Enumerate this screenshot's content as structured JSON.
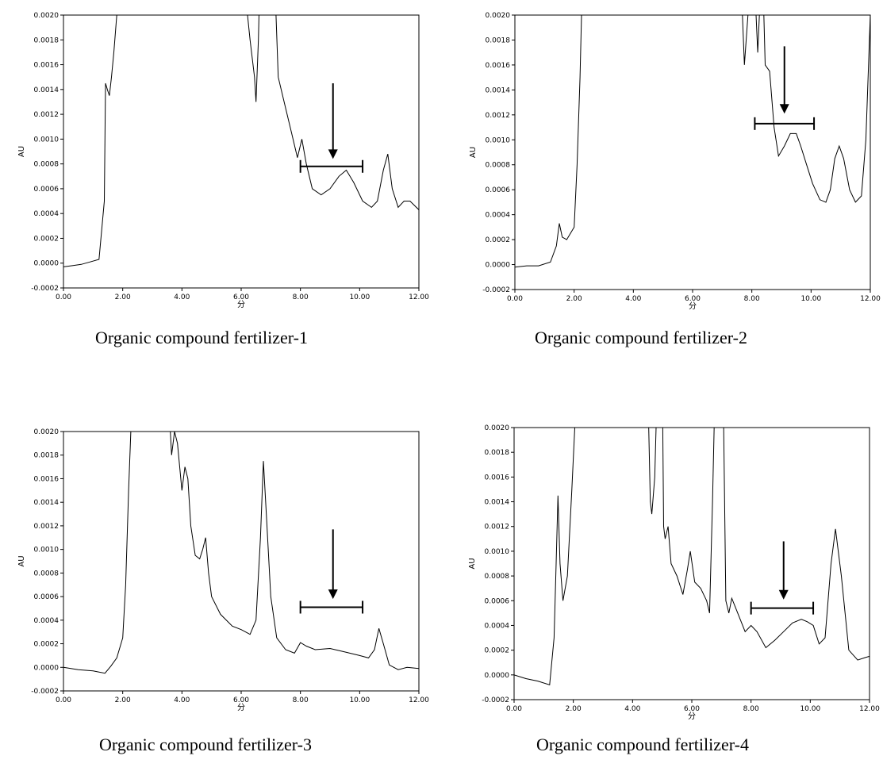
{
  "chart_data": [
    {
      "type": "line",
      "caption": "Organic compound fertilizer-1",
      "xlabel": "分",
      "ylabel": "AU",
      "xlim": [
        0,
        12
      ],
      "ylim": [
        -0.0002,
        0.002
      ],
      "xticks": [
        "0.00",
        "2.00",
        "4.00",
        "6.00",
        "8.00",
        "10.00",
        "12.00"
      ],
      "yticks": [
        "-0.0002",
        "0.0000",
        "0.0002",
        "0.0004",
        "0.0006",
        "0.0008",
        "0.0010",
        "0.0012",
        "0.0014",
        "0.0016",
        "0.0018",
        "0.0020"
      ],
      "grid": false,
      "series": [
        {
          "x": [
            0,
            0.3,
            0.6,
            0.9,
            1.2,
            1.38,
            1.42,
            1.48,
            1.55,
            1.62,
            1.7,
            1.8,
            2.0,
            6.0,
            6.3,
            6.45,
            6.5,
            6.58,
            6.65,
            7.1,
            7.25,
            7.35,
            7.5,
            7.7,
            7.9,
            8.05,
            8.2,
            8.4,
            8.7,
            9.0,
            9.3,
            9.55,
            9.8,
            10.1,
            10.4,
            10.6,
            10.8,
            10.95,
            11.1,
            11.3,
            11.5,
            11.7,
            12.0
          ],
          "y": [
            -3e-05,
            -2e-05,
            -1e-05,
            1e-05,
            3e-05,
            0.0005,
            0.00145,
            0.0014,
            0.00135,
            0.0015,
            0.0017,
            0.002,
            0.0025,
            0.0025,
            0.0018,
            0.0015,
            0.0013,
            0.0018,
            0.0025,
            0.0025,
            0.0015,
            0.0014,
            0.00125,
            0.00105,
            0.00085,
            0.001,
            0.0008,
            0.0006,
            0.00055,
            0.0006,
            0.0007,
            0.00075,
            0.00065,
            0.0005,
            0.00045,
            0.0005,
            0.00075,
            0.00088,
            0.0006,
            0.00045,
            0.0005,
            0.0005,
            0.00043
          ]
        }
      ],
      "annotation": {
        "arrow_x": 9.1,
        "arrow_y_top": 0.00145,
        "arrow_y_bottom": 0.00084,
        "bracket_x": [
          8.0,
          10.1
        ],
        "bracket_y": 0.00078
      }
    },
    {
      "type": "line",
      "caption": "Organic compound fertilizer-2",
      "xlabel": "分",
      "ylabel": "AU",
      "xlim": [
        0,
        12
      ],
      "ylim": [
        -0.0002,
        0.002
      ],
      "xticks": [
        "0.00",
        "2.00",
        "4.00",
        "6.00",
        "8.00",
        "10.00",
        "12.00"
      ],
      "yticks": [
        "-0.0002",
        "0.0000",
        "0.0002",
        "0.0004",
        "0.0006",
        "0.0008",
        "0.0010",
        "0.0012",
        "0.0014",
        "0.0016",
        "0.0018",
        "0.0020"
      ],
      "grid": false,
      "series": [
        {
          "x": [
            0,
            0.4,
            0.8,
            1.2,
            1.4,
            1.5,
            1.6,
            1.75,
            1.9,
            2.0,
            2.1,
            2.2,
            2.3,
            7.6,
            7.75,
            7.9,
            8.05,
            8.2,
            8.35,
            8.45,
            8.6,
            8.75,
            8.9,
            9.1,
            9.3,
            9.5,
            9.65,
            9.85,
            10.05,
            10.3,
            10.5,
            10.65,
            10.8,
            10.95,
            11.1,
            11.3,
            11.5,
            11.7,
            11.85,
            12.0
          ],
          "y": [
            -2e-05,
            -1e-05,
            -1e-05,
            2e-05,
            0.00015,
            0.00033,
            0.00022,
            0.0002,
            0.00026,
            0.0003,
            0.0008,
            0.0015,
            0.0025,
            0.0025,
            0.0016,
            0.0021,
            0.0025,
            0.0017,
            0.0025,
            0.0016,
            0.00155,
            0.0011,
            0.00087,
            0.00095,
            0.00105,
            0.00105,
            0.00095,
            0.0008,
            0.00065,
            0.00052,
            0.0005,
            0.0006,
            0.00085,
            0.00095,
            0.00085,
            0.0006,
            0.0005,
            0.00055,
            0.001,
            0.002
          ]
        }
      ],
      "annotation": {
        "arrow_x": 9.1,
        "arrow_y_top": 0.00175,
        "arrow_y_bottom": 0.00121,
        "bracket_x": [
          8.1,
          10.1
        ],
        "bracket_y": 0.00113
      }
    },
    {
      "type": "line",
      "caption": "Organic compound fertilizer-3",
      "xlabel": "分",
      "ylabel": "AU",
      "xlim": [
        0,
        12
      ],
      "ylim": [
        -0.0002,
        0.002
      ],
      "xticks": [
        "0.00",
        "2.00",
        "4.00",
        "6.00",
        "8.00",
        "10.00",
        "12.00"
      ],
      "yticks": [
        "-0.0002",
        "0.0000",
        "0.0002",
        "0.0004",
        "0.0006",
        "0.0008",
        "0.0010",
        "0.0012",
        "0.0014",
        "0.0016",
        "0.0018",
        "0.0020"
      ],
      "grid": false,
      "series": [
        {
          "x": [
            0,
            0.5,
            1.0,
            1.4,
            1.6,
            1.8,
            2.0,
            2.1,
            2.2,
            2.35,
            3.5,
            3.65,
            3.75,
            3.85,
            4.0,
            4.1,
            4.2,
            4.3,
            4.45,
            4.6,
            4.7,
            4.8,
            4.9,
            5.0,
            5.3,
            5.7,
            6.0,
            6.3,
            6.5,
            6.65,
            6.75,
            6.85,
            7.0,
            7.2,
            7.5,
            7.8,
            8.0,
            8.2,
            8.5,
            9.0,
            9.5,
            10.0,
            10.3,
            10.5,
            10.65,
            10.8,
            11.0,
            11.3,
            11.6,
            12.0
          ],
          "y": [
            0.0,
            -2e-05,
            -3e-05,
            -5e-05,
            1e-05,
            8e-05,
            0.00025,
            0.0007,
            0.0015,
            0.0025,
            0.0025,
            0.0018,
            0.002,
            0.0019,
            0.0015,
            0.0017,
            0.0016,
            0.0012,
            0.00095,
            0.00092,
            0.001,
            0.0011,
            0.0008,
            0.0006,
            0.00045,
            0.00035,
            0.00032,
            0.00028,
            0.0004,
            0.0011,
            0.00175,
            0.0013,
            0.0006,
            0.00025,
            0.00015,
            0.00012,
            0.00021,
            0.00018,
            0.00015,
            0.00016,
            0.00013,
            0.0001,
            8e-05,
            0.00015,
            0.00033,
            0.0002,
            2e-05,
            -2e-05,
            0.0,
            -1e-05
          ]
        }
      ],
      "annotation": {
        "arrow_x": 9.1,
        "arrow_y_top": 0.00117,
        "arrow_y_bottom": 0.00058,
        "bracket_x": [
          8.0,
          10.1
        ],
        "bracket_y": 0.00051
      }
    },
    {
      "type": "line",
      "caption": "Organic compound fertilizer-4",
      "xlabel": "分",
      "ylabel": "AU",
      "xlim": [
        0,
        12
      ],
      "ylim": [
        -0.0002,
        0.002
      ],
      "xticks": [
        "0.00",
        "2.00",
        "4.00",
        "6.00",
        "8.00",
        "10.00",
        "12.00"
      ],
      "yticks": [
        "-0.0002",
        "0.0000",
        "0.0002",
        "0.0004",
        "0.0006",
        "0.0008",
        "0.0010",
        "0.0012",
        "0.0014",
        "0.0016",
        "0.0018",
        "0.0020"
      ],
      "grid": false,
      "series": [
        {
          "x": [
            0,
            0.4,
            0.8,
            1.2,
            1.35,
            1.42,
            1.48,
            1.55,
            1.65,
            1.8,
            1.95,
            2.05,
            2.15,
            4.5,
            4.6,
            4.65,
            4.75,
            4.85,
            5.0,
            5.05,
            5.1,
            5.2,
            5.3,
            5.5,
            5.7,
            5.85,
            5.95,
            6.1,
            6.3,
            6.5,
            6.6,
            6.7,
            6.8,
            7.05,
            7.15,
            7.25,
            7.35,
            7.55,
            7.8,
            8.0,
            8.2,
            8.5,
            8.8,
            9.1,
            9.4,
            9.7,
            9.9,
            10.1,
            10.3,
            10.5,
            10.7,
            10.85,
            11.05,
            11.3,
            11.6,
            11.85,
            12.0
          ],
          "y": [
            0.0,
            -3e-05,
            -5e-05,
            -8e-05,
            0.0003,
            0.0009,
            0.00145,
            0.0009,
            0.0006,
            0.0008,
            0.0015,
            0.002,
            0.0025,
            0.0025,
            0.0014,
            0.0013,
            0.0016,
            0.0025,
            0.0025,
            0.0012,
            0.0011,
            0.0012,
            0.0009,
            0.0008,
            0.00065,
            0.00085,
            0.001,
            0.00075,
            0.0007,
            0.0006,
            0.0005,
            0.0014,
            0.0025,
            0.0025,
            0.0006,
            0.0005,
            0.00062,
            0.0005,
            0.00035,
            0.0004,
            0.00035,
            0.00022,
            0.00028,
            0.00035,
            0.00042,
            0.00045,
            0.00043,
            0.0004,
            0.00025,
            0.0003,
            0.0009,
            0.00118,
            0.0008,
            0.0002,
            0.00012,
            0.00014,
            0.00015
          ]
        }
      ],
      "annotation": {
        "arrow_x": 9.1,
        "arrow_y_top": 0.00108,
        "arrow_y_bottom": 0.00061,
        "bracket_x": [
          8.0,
          10.1
        ],
        "bracket_y": 0.00054
      }
    }
  ]
}
